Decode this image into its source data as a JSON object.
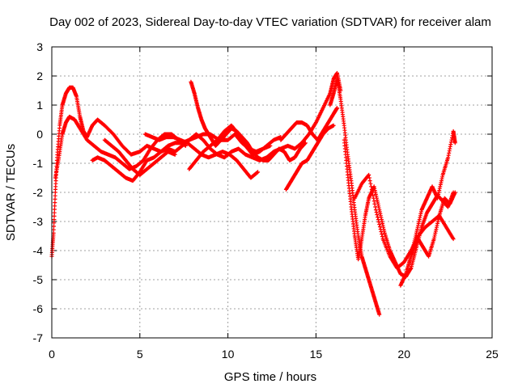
{
  "chart_data": {
    "type": "scatter",
    "title": "Day 002 of 2023, Sidereal Day-to-day VTEC variation (SDTVAR) for receiver alam",
    "xlabel": "GPS time / hours",
    "ylabel": "SDTVAR / TECUs",
    "xlim": [
      0,
      25
    ],
    "ylim": [
      -7,
      3
    ],
    "xticks": [
      0,
      5,
      10,
      15,
      20,
      25
    ],
    "yticks": [
      -7,
      -6,
      -5,
      -4,
      -3,
      -2,
      -1,
      0,
      1,
      2,
      3
    ],
    "grid": true,
    "marker": "+",
    "color": "#ff0000",
    "series": [
      {
        "x": [
          0.0,
          0.1,
          0.2,
          0.3,
          0.45,
          0.6,
          0.8,
          1.0,
          1.2,
          1.4,
          1.6,
          1.8,
          2.0,
          2.3,
          2.6,
          3.0,
          3.5,
          4.0,
          4.5,
          5.0,
          5.4,
          5.8,
          6.2,
          6.6,
          7.0,
          7.4,
          7.8,
          8.2,
          8.6,
          9.0,
          9.5,
          10.0,
          10.4,
          10.8,
          11.2,
          11.6,
          12.0,
          12.4
        ],
        "y": [
          -4.2,
          -3.4,
          -2.0,
          -0.8,
          0.3,
          1.0,
          1.4,
          1.6,
          1.6,
          1.3,
          0.6,
          0.1,
          -0.1,
          0.3,
          0.5,
          0.3,
          0.0,
          -0.4,
          -0.7,
          -0.6,
          -0.4,
          -0.5,
          -0.6,
          -0.4,
          -0.3,
          -0.3,
          -0.2,
          -0.1,
          0.0,
          0.0,
          -0.2,
          -0.2,
          0.0,
          -0.3,
          -0.5,
          -0.6,
          -0.5,
          -0.4
        ]
      },
      {
        "x": [
          0.2,
          0.4,
          0.6,
          0.8,
          1.0,
          1.3,
          1.6,
          2.0,
          2.4,
          2.8,
          3.2,
          3.6,
          4.0,
          4.4,
          4.8,
          5.2,
          5.6,
          6.0,
          6.4,
          6.8,
          7.2,
          7.6
        ],
        "y": [
          -1.5,
          -0.8,
          0.0,
          0.4,
          0.6,
          0.5,
          0.2,
          -0.2,
          -0.4,
          -0.6,
          -0.7,
          -0.8,
          -1.0,
          -1.2,
          -1.1,
          -0.9,
          -0.5,
          -0.2,
          0.0,
          0.0,
          -0.2,
          -0.4
        ]
      },
      {
        "x": [
          2.3,
          2.6,
          3.0,
          3.4,
          3.8,
          4.2,
          4.6,
          5.0,
          5.4,
          5.8,
          6.2,
          6.6,
          7.0,
          7.4,
          7.8,
          8.2,
          8.6,
          9.0,
          9.4,
          9.8,
          10.2,
          10.6,
          11.0,
          11.4,
          11.8,
          12.2,
          12.6,
          13.0,
          13.4,
          13.8,
          14.2,
          14.6,
          15.0,
          15.4,
          15.8,
          16.0,
          16.2,
          16.4
        ],
        "y": [
          -0.9,
          -0.8,
          -0.9,
          -1.1,
          -1.3,
          -1.5,
          -1.6,
          -1.3,
          -0.9,
          -0.8,
          -0.6,
          -0.5,
          -0.6,
          -0.4,
          -0.2,
          0.0,
          -0.2,
          -0.5,
          -0.7,
          -0.8,
          -0.6,
          -0.5,
          -0.7,
          -0.8,
          -0.9,
          -0.8,
          -0.6,
          -0.5,
          -0.4,
          -0.5,
          -0.3,
          0.0,
          0.4,
          0.9,
          1.4,
          1.9,
          2.1,
          1.5
        ]
      },
      {
        "x": [
          3.0,
          3.4,
          3.8,
          4.2,
          4.6,
          5.0,
          5.4,
          5.8,
          6.2,
          6.6,
          7.0
        ],
        "y": [
          -0.2,
          -0.4,
          -0.6,
          -0.9,
          -1.2,
          -1.4,
          -1.2,
          -1.0,
          -0.8,
          -0.6,
          -0.7
        ]
      },
      {
        "x": [
          5.3,
          5.7,
          6.1,
          6.5,
          6.9,
          7.3,
          7.7,
          8.1,
          8.5,
          8.9,
          9.3,
          9.7,
          10.1,
          10.5,
          10.9,
          11.3,
          11.7
        ],
        "y": [
          0.0,
          -0.1,
          -0.2,
          -0.1,
          -0.1,
          -0.2,
          -0.3,
          -0.5,
          -0.7,
          -0.8,
          -0.7,
          -0.6,
          -0.7,
          -0.9,
          -1.2,
          -1.5,
          -1.3
        ]
      },
      {
        "x": [
          7.9,
          8.1,
          8.3,
          8.5,
          8.7,
          8.9,
          9.1,
          9.3,
          9.6,
          9.9,
          10.2,
          10.5,
          10.8,
          11.1,
          11.4,
          11.7,
          12.0,
          12.3,
          12.6,
          12.9,
          13.2,
          13.5,
          13.8,
          14.1,
          14.4
        ],
        "y": [
          1.8,
          1.4,
          0.9,
          0.5,
          0.2,
          0.0,
          -0.2,
          -0.4,
          -0.2,
          0.0,
          0.2,
          0.1,
          -0.1,
          -0.3,
          -0.6,
          -0.8,
          -0.9,
          -0.9,
          -0.7,
          -0.5,
          -0.6,
          -0.9,
          -0.8,
          -0.5,
          -0.3
        ]
      },
      {
        "x": [
          7.8,
          8.2,
          8.6,
          9.0,
          9.4,
          9.8,
          10.2,
          10.6,
          11.0,
          11.4,
          11.8,
          12.2,
          12.6,
          13.0
        ],
        "y": [
          -1.2,
          -0.9,
          -0.6,
          -0.4,
          -0.2,
          0.1,
          0.3,
          0.0,
          -0.4,
          -0.7,
          -0.6,
          -0.4,
          -0.2,
          -0.1
        ]
      },
      {
        "x": [
          13.0,
          13.3,
          13.6,
          13.9,
          14.2,
          14.5,
          14.8,
          15.1,
          15.4,
          15.7,
          16.0,
          16.2
        ],
        "y": [
          -0.2,
          0.0,
          0.2,
          0.4,
          0.4,
          0.3,
          0.0,
          -0.2,
          0.1,
          0.4,
          0.7,
          0.9
        ]
      },
      {
        "x": [
          13.3,
          13.6,
          13.9,
          14.2,
          14.5,
          14.8,
          15.1,
          15.4,
          15.7,
          16.0
        ],
        "y": [
          -1.9,
          -1.6,
          -1.3,
          -1.0,
          -0.9,
          -0.6,
          -0.3,
          0.0,
          0.2,
          0.3
        ]
      },
      {
        "x": [
          15.8,
          16.0,
          16.2,
          16.4,
          16.6,
          16.8,
          17.0,
          17.2,
          17.4,
          17.6,
          17.8,
          18.0,
          18.2,
          18.4,
          18.6
        ],
        "y": [
          1.0,
          1.4,
          1.9,
          1.2,
          0.3,
          -0.7,
          -1.6,
          -2.6,
          -3.5,
          -4.2,
          -4.6,
          -5.0,
          -5.4,
          -5.8,
          -6.2
        ]
      },
      {
        "x": [
          16.6,
          16.8,
          17.0,
          17.2,
          17.4,
          17.6,
          17.8,
          18.0,
          18.3,
          18.6,
          18.9,
          19.2,
          19.5,
          19.8,
          20.1,
          20.4,
          20.7,
          21.0,
          21.3,
          21.6,
          21.9,
          22.2,
          22.5,
          22.8
        ],
        "y": [
          -0.2,
          -1.4,
          -2.5,
          -3.5,
          -4.3,
          -3.6,
          -2.8,
          -2.2,
          -1.8,
          -2.6,
          -3.4,
          -4.0,
          -4.4,
          -4.8,
          -4.9,
          -4.6,
          -3.9,
          -3.2,
          -2.7,
          -2.4,
          -2.1,
          -2.3,
          -2.5,
          -2.0
        ]
      },
      {
        "x": [
          17.2,
          17.6,
          18.0,
          18.4,
          18.8,
          19.2,
          19.6,
          20.0,
          20.4,
          20.8,
          21.2,
          21.6,
          22.0,
          22.4,
          22.8
        ],
        "y": [
          -2.2,
          -1.7,
          -1.4,
          -2.6,
          -3.6,
          -4.2,
          -4.6,
          -4.4,
          -4.0,
          -3.5,
          -3.2,
          -3.0,
          -2.8,
          -3.2,
          -3.6
        ]
      },
      {
        "x": [
          19.8,
          20.1,
          20.4,
          20.7,
          21.0,
          21.3,
          21.6,
          21.9,
          22.2,
          22.5,
          22.8,
          22.9
        ],
        "y": [
          -5.2,
          -4.8,
          -4.2,
          -3.4,
          -2.6,
          -2.2,
          -1.8,
          -2.2,
          -1.4,
          -0.8,
          0.1,
          -0.3
        ]
      },
      {
        "x": [
          20.2,
          20.5,
          20.8,
          21.1,
          21.4,
          21.7,
          22.0,
          22.3,
          22.6,
          22.9
        ],
        "y": [
          -4.6,
          -4.0,
          -3.6,
          -3.9,
          -4.2,
          -3.6,
          -2.8,
          -2.2,
          -2.4,
          -2.0
        ]
      }
    ]
  }
}
